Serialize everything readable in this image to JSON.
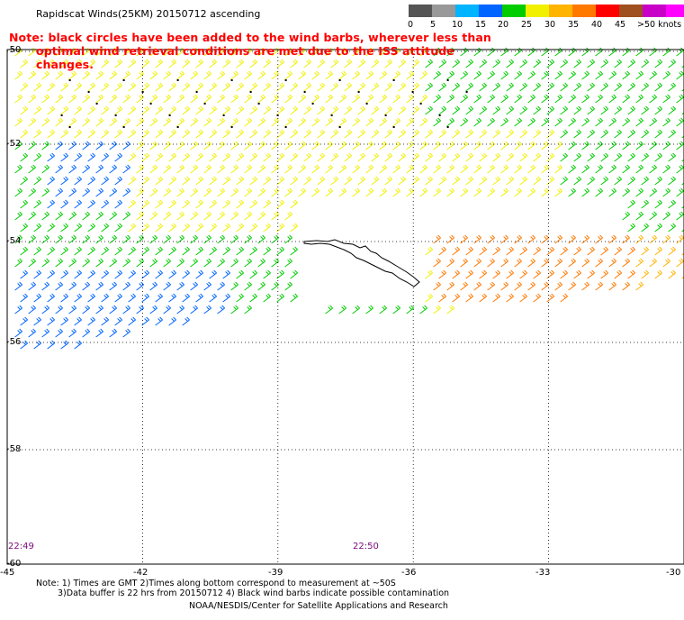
{
  "title": "Rapidscat Winds(25KM) 20150712 ascending",
  "note_line1": "Note: black circles have been added to the wind barbs, wherever less than",
  "note_line2": "optimal wind retrieval conditions are met due to the ISS attitude changes.",
  "legend": {
    "colors": [
      "#555555",
      "#999999",
      "#00b4ff",
      "#0064ff",
      "#00cc00",
      "#f0f000",
      "#ffb400",
      "#ff7800",
      "#ff0000",
      "#a0501e",
      "#c800c8",
      "#ff00ff",
      "#5a008c"
    ],
    "labels": [
      "0",
      "5",
      "10",
      "15",
      "20",
      "25",
      "30",
      "35",
      "40",
      "45",
      ">50 knots"
    ]
  },
  "map": {
    "lon_ticks": [
      {
        "value": -45,
        "label": "-45"
      },
      {
        "value": -42,
        "label": "-42"
      },
      {
        "value": -39,
        "label": "-39"
      },
      {
        "value": -36,
        "label": "-36"
      },
      {
        "value": -33,
        "label": "-33"
      },
      {
        "value": -30,
        "label": "-30"
      }
    ],
    "lat_ticks": [
      {
        "value": -50,
        "label": "-50"
      },
      {
        "value": -52,
        "label": "-52"
      },
      {
        "value": -54,
        "label": "-54"
      },
      {
        "value": -56,
        "label": "-56"
      },
      {
        "value": -58,
        "label": "-58"
      },
      {
        "value": -60,
        "label": "-60"
      }
    ],
    "lon_range": [
      -45,
      -30
    ],
    "lat_range": [
      -50,
      -60
    ],
    "grid": "dotted",
    "island": "South Georgia"
  },
  "time_labels": [
    {
      "text": "22:49",
      "lon": -44.8
    },
    {
      "text": "22:50",
      "lon": -36.9
    }
  ],
  "footer": {
    "line1": "Note: 1) Times are GMT 2)Times along bottom correspond to measurement at ~50S",
    "line2": "3)Data buffer is 22 hrs from 20150712 4) Black wind barbs indicate possible contamination",
    "line3": "NOAA/NESDIS/Center for Satellite Applications and Research"
  }
}
